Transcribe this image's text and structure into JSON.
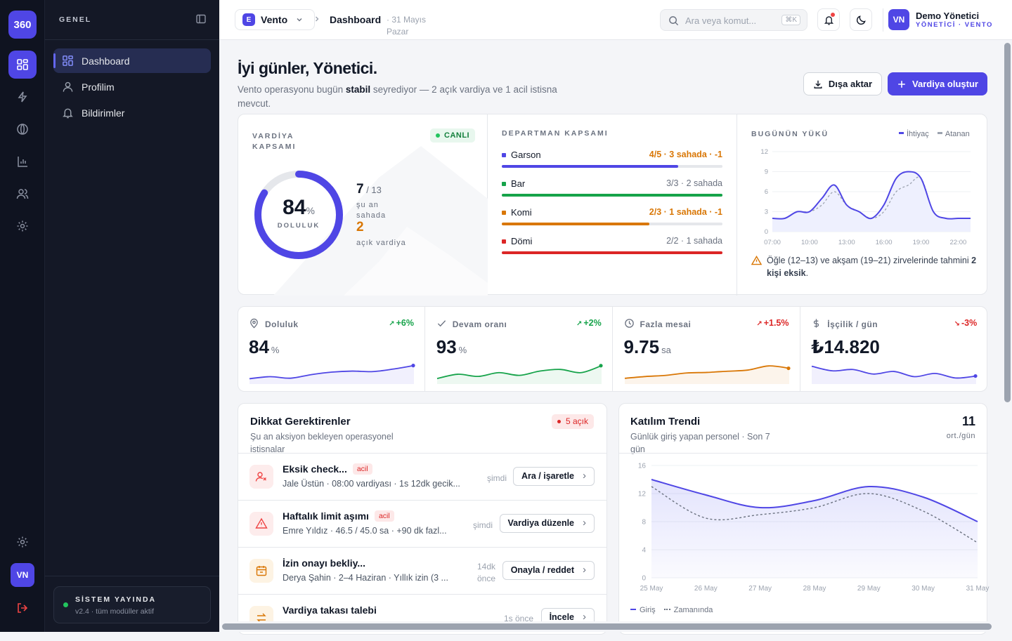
{
  "rail": {
    "logo": "360",
    "avatar": "VN"
  },
  "sidebar": {
    "section": "GENEL",
    "items": [
      {
        "label": "Dashboard",
        "icon": "dashboard-icon"
      },
      {
        "label": "Profilim",
        "icon": "user-icon"
      },
      {
        "label": "Bildirimler",
        "icon": "bell-icon"
      }
    ],
    "status_title": "SİSTEM YAYINDA",
    "status_sub": "v2.4 · tüm modüller aktif"
  },
  "topbar": {
    "workspace_initial": "E",
    "workspace": "Vento",
    "breadcrumb": "Dashboard",
    "date": "· 31 Mayıs Pazar",
    "search_placeholder": "Ara veya komut...",
    "search_shortcut": "⌘K",
    "user_initials": "VN",
    "user_name": "Demo Yönetici",
    "user_role": "YÖNETİCİ · VENTO"
  },
  "hero": {
    "title": "İyi günler, Yönetici.",
    "subtitle_pre": "Vento operasyonu bugün ",
    "subtitle_bold": "stabil",
    "subtitle_post": " seyrediyor — 2 açık vardiya ve 1 acil istisna mevcut.",
    "export_label": "Dışa aktar",
    "create_label": "Vardiya oluştur"
  },
  "coverage": {
    "label": "VARDİYA KAPSAMI",
    "live": "CANLI",
    "percent": "84",
    "percent_sign": "%",
    "fill_label": "DOLULUK",
    "on_site": "7",
    "total": "/ 13",
    "on_site_label": "şu an sahada",
    "open": "2",
    "open_label": "açık vardiya",
    "fill_fraction": 0.84
  },
  "departments": {
    "label": "DEPARTMAN KAPSAMI",
    "items": [
      {
        "name": "Garson",
        "value": "4/5 · 3 sahada · -1",
        "fill": 0.8,
        "color": "#4f46e5",
        "warn": true
      },
      {
        "name": "Bar",
        "value": "3/3 · 2 sahada",
        "fill": 1.0,
        "color": "#16a34a",
        "warn": false
      },
      {
        "name": "Komi",
        "value": "2/3 · 1 sahada · -1",
        "fill": 0.67,
        "color": "#d97706",
        "warn": true
      },
      {
        "name": "Dömi",
        "value": "2/2 · 1 sahada",
        "fill": 1.0,
        "color": "#dc2626",
        "warn": false
      }
    ]
  },
  "load": {
    "label": "BUGÜNÜN YÜKÜ",
    "legend_need": "İhtiyaç",
    "legend_assigned": "Atanan",
    "note_pre": "Öğle (12–13) ve akşam (19–21) zirvelerinde tahmini ",
    "note_bold": "2 kişi eksik",
    "note_post": "."
  },
  "kpis": [
    {
      "label": "Doluluk",
      "value": "84",
      "unit": "%",
      "delta": "+6%",
      "delta_color": "#16a34a",
      "icon": "location-icon",
      "color": "#4f46e5",
      "spark": [
        3,
        3.4,
        3.1,
        3.8,
        4.3,
        4.5,
        4.4,
        4.9,
        5.6
      ]
    },
    {
      "label": "Devam oranı",
      "value": "93",
      "unit": "%",
      "delta": "+2%",
      "delta_color": "#16a34a",
      "icon": "check-icon",
      "color": "#16a34a",
      "spark": [
        3,
        3.8,
        3.4,
        4.1,
        3.6,
        4.4,
        4.7,
        4.1,
        5.4
      ]
    },
    {
      "label": "Fazla mesai",
      "value": "9.75",
      "unit": "sa",
      "delta": "+1.5%",
      "delta_color": "#dc2626",
      "icon": "clock-icon",
      "color": "#d97706",
      "spark": [
        3,
        3.3,
        3.5,
        3.9,
        4,
        4.2,
        4.4,
        5.1,
        4.7
      ]
    },
    {
      "label": "İşçilik / gün",
      "value": "₺14.820",
      "unit": "",
      "delta": "-3%",
      "delta_color": "#dc2626",
      "icon": "dollar-icon",
      "color": "#4f46e5",
      "spark": [
        5.4,
        4.7,
        4.9,
        4.2,
        4.6,
        3.8,
        4.3,
        3.6,
        3.9
      ]
    }
  ],
  "attention": {
    "title": "Dikkat Gerektirenler",
    "subtitle": "Şu an aksiyon bekleyen operasyonel istisnalar",
    "badge": "5 açık",
    "items": [
      {
        "title": "Eksik check...",
        "badge": "acil",
        "desc": "Jale Üstün · 08:00 vardiyası · 1s 12dk gecik...",
        "time": "şimdi",
        "action": "Ara / işaretle",
        "tone": "red",
        "icon": "user-x-icon"
      },
      {
        "title": "Haftalık limit aşımı",
        "badge": "acil",
        "desc": "Emre Yıldız · 46.5 / 45.0 sa · +90 dk fazl...",
        "time": "şimdi",
        "action": "Vardiya düzenle",
        "tone": "red",
        "icon": "warning-icon"
      },
      {
        "title": "İzin onayı bekliy...",
        "badge": "",
        "desc": "Derya Şahin · 2–4 Haziran · Yıllık izin (3 ...",
        "time": "14dk önce",
        "action": "Onayla / reddet",
        "tone": "amber",
        "icon": "calendar-icon"
      },
      {
        "title": "Vardiya takası talebi",
        "badge": "",
        "desc": "",
        "time": "1s önce",
        "action": "İncele",
        "tone": "amber",
        "icon": "swap-icon"
      }
    ]
  },
  "trend": {
    "title": "Katılım Trendi",
    "subtitle": "Günlük giriş yapan personel · Son 7 gün",
    "value": "11",
    "value_label": "ort./gün",
    "legend_in": "Giriş",
    "legend_on_time": "Zamanında"
  },
  "chart_data": [
    {
      "type": "line",
      "title": "BUGÜNÜN YÜKÜ",
      "x": [
        "07:00",
        "08:00",
        "09:00",
        "10:00",
        "11:00",
        "12:00",
        "13:00",
        "14:00",
        "15:00",
        "16:00",
        "17:00",
        "18:00",
        "19:00",
        "20:00",
        "21:00",
        "22:00",
        "23:00"
      ],
      "x_ticks": [
        "07:00",
        "10:00",
        "13:00",
        "16:00",
        "19:00",
        "22:00"
      ],
      "y_ticks": [
        0,
        3,
        6,
        9,
        12
      ],
      "ylim": [
        0,
        12
      ],
      "series": [
        {
          "name": "İhtiyaç",
          "values": [
            2,
            2,
            3,
            3,
            5,
            7,
            4,
            3,
            2,
            4,
            8,
            9,
            8,
            3,
            2,
            2,
            2
          ],
          "color": "#4f46e5"
        },
        {
          "name": "Atanan",
          "values": [
            2,
            2,
            3,
            3,
            4,
            6,
            4,
            3,
            2,
            3,
            6,
            7,
            8,
            3,
            2,
            2,
            2
          ],
          "color": "#9ca3af"
        }
      ]
    },
    {
      "type": "area",
      "title": "Katılım Trendi",
      "x": [
        "25 May",
        "26 May",
        "27 May",
        "28 May",
        "29 May",
        "30 May",
        "31 May"
      ],
      "y_ticks": [
        0,
        4,
        8,
        12,
        16
      ],
      "ylim": [
        0,
        16
      ],
      "series": [
        {
          "name": "Giriş",
          "values": [
            14,
            11.8,
            10,
            11,
            13,
            11.5,
            8
          ],
          "color": "#4f46e5"
        },
        {
          "name": "Zamanında",
          "values": [
            13,
            8.5,
            9,
            10,
            12,
            9.5,
            5
          ],
          "color": "#6b7280"
        }
      ]
    }
  ]
}
